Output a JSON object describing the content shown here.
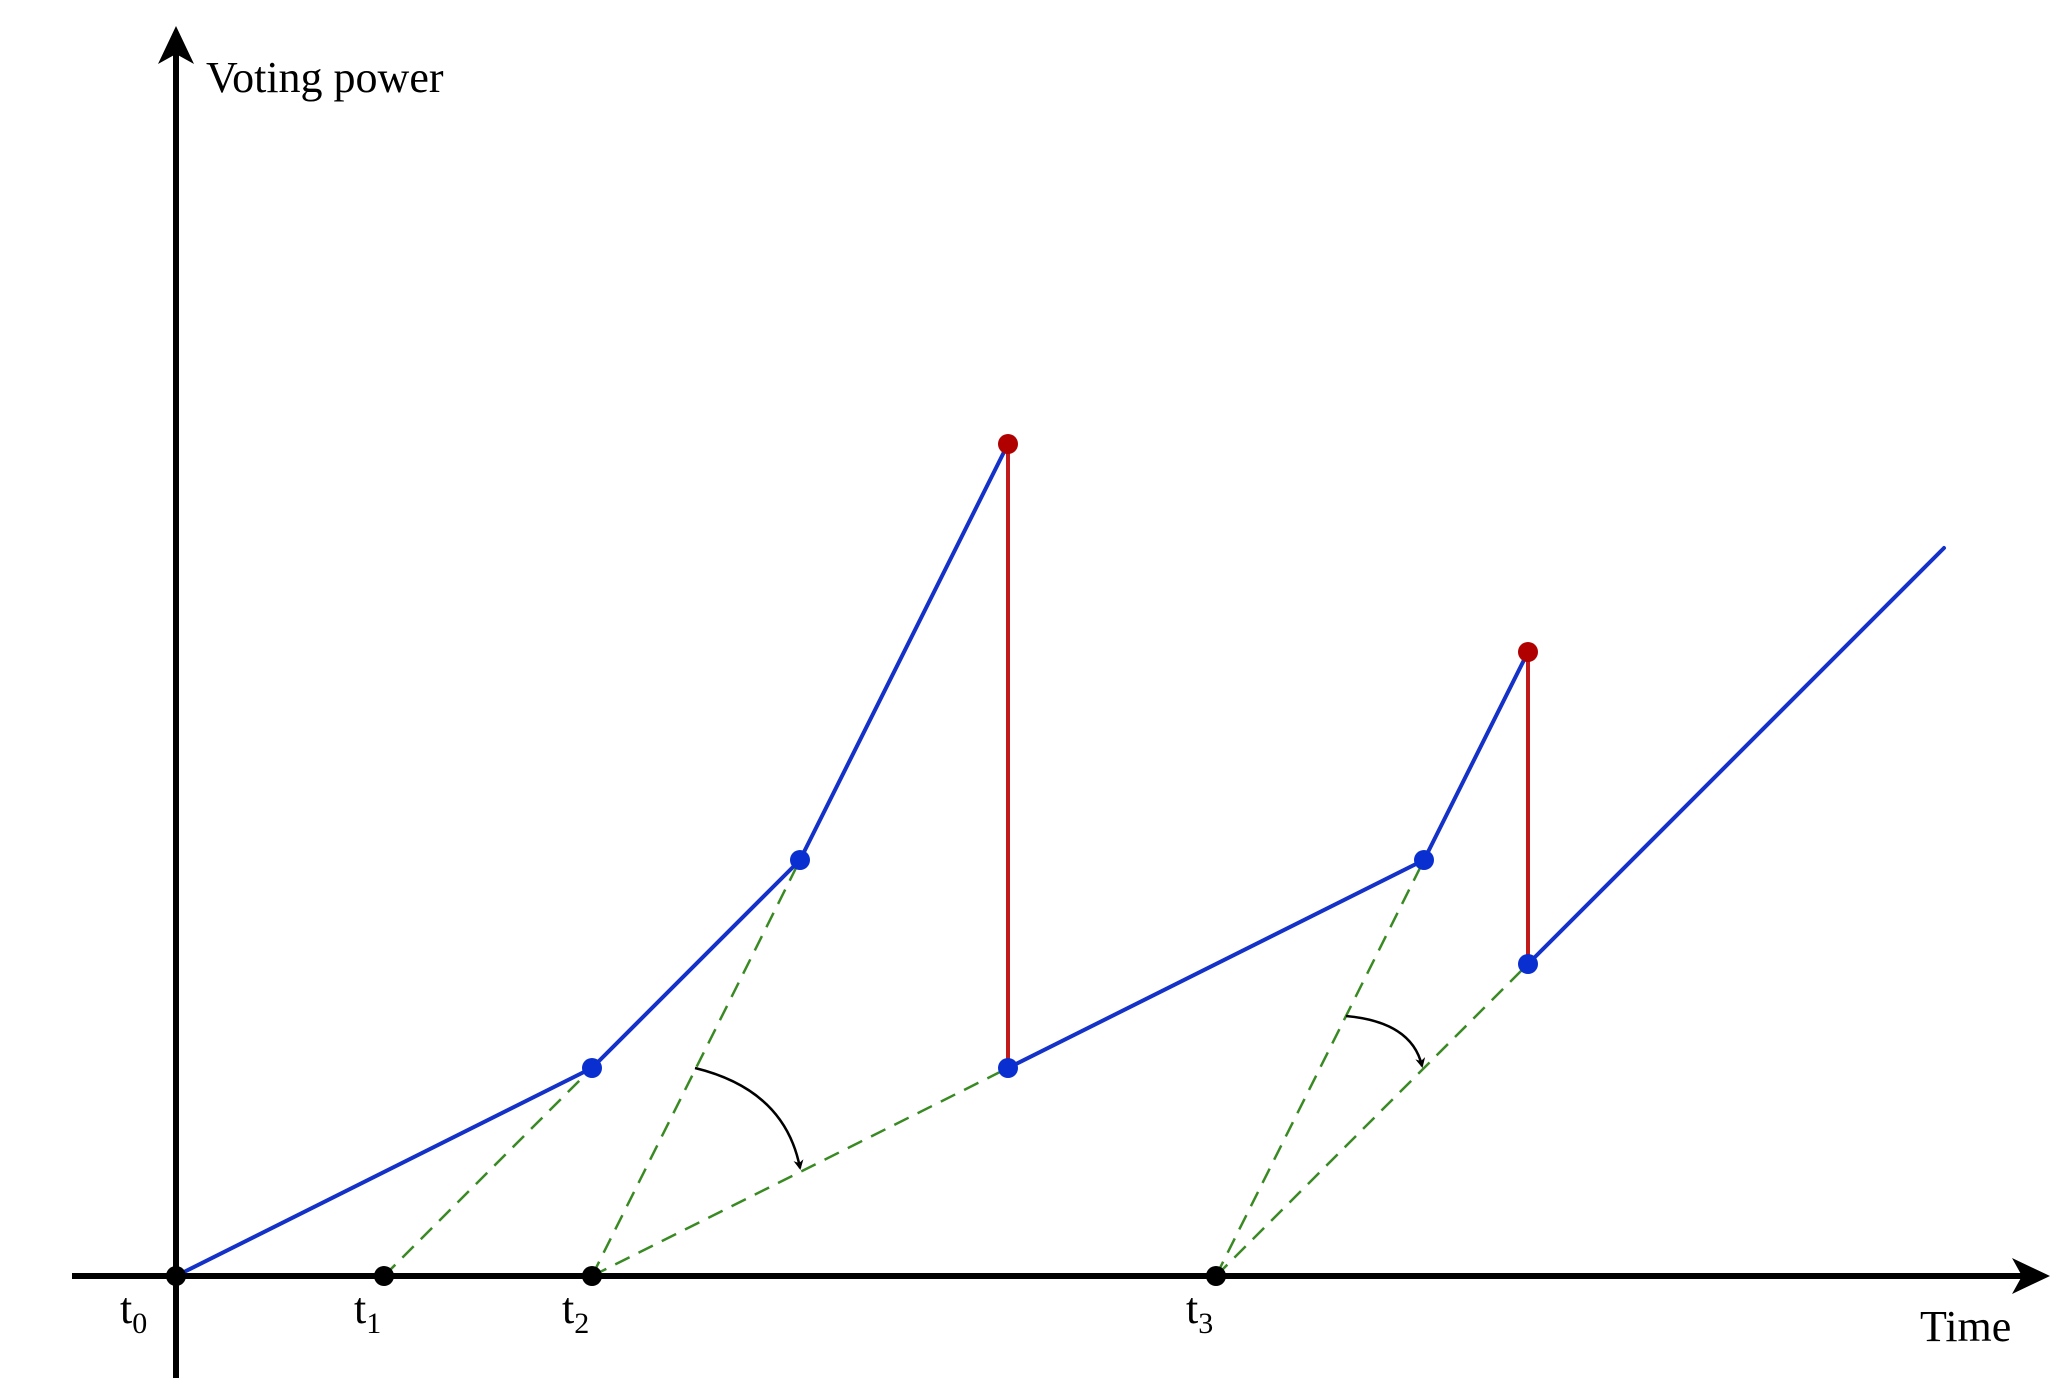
{
  "diagram": {
    "y_axis_label": "Voting power",
    "x_axis_label": "Time",
    "tick_labels": [
      {
        "base": "t",
        "sub": "0"
      },
      {
        "base": "t",
        "sub": "1"
      },
      {
        "base": "t",
        "sub": "2"
      },
      {
        "base": "t",
        "sub": "3"
      }
    ],
    "colors": {
      "axis": "#000000",
      "blue_line": "#1431c8",
      "blue_point": "#0a2fd0",
      "red_line": "#c01a1a",
      "red_point": "#b00000",
      "green_dashed": "#3a8a24"
    }
  }
}
